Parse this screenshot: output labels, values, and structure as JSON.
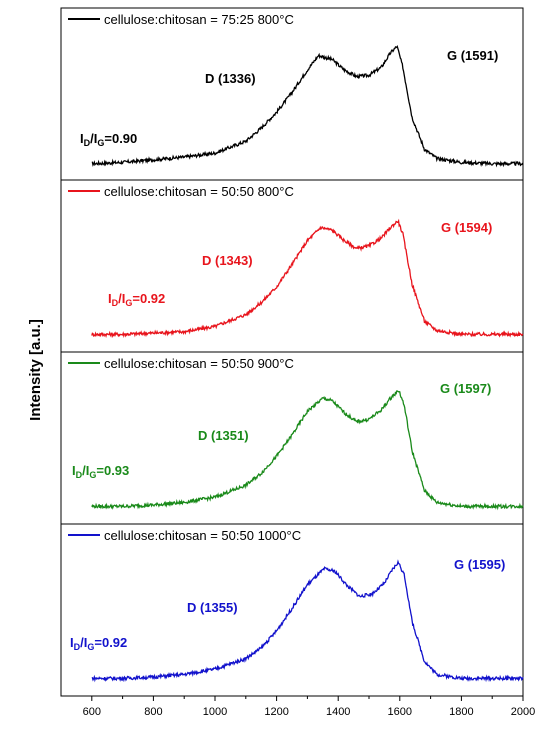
{
  "chart_data": {
    "type": "line",
    "ylabel": "Intensity [a.u.]",
    "xlim": [
      500,
      2000
    ],
    "xticks": [
      "600",
      "800",
      "1000",
      "1200",
      "1400",
      "1600",
      "1800",
      "2000"
    ],
    "panels": [
      {
        "legend": "cellulose:chitosan = 75:25 800°C",
        "color": "#000000",
        "d_label": "D (1336)",
        "g_label": "G (1591)",
        "ratio": {
          "main": "I",
          "d": "D",
          "sep": "/I",
          "g": "G",
          "value": "=0.90"
        },
        "x": [
          600,
          700,
          800,
          900,
          1000,
          1100,
          1150,
          1200,
          1250,
          1300,
          1336,
          1380,
          1420,
          1460,
          1500,
          1540,
          1570,
          1591,
          1610,
          1640,
          1680,
          1720,
          1800,
          1900,
          2000
        ],
        "y": [
          0.01,
          0.02,
          0.04,
          0.06,
          0.09,
          0.18,
          0.28,
          0.4,
          0.55,
          0.72,
          0.83,
          0.8,
          0.72,
          0.67,
          0.68,
          0.74,
          0.85,
          0.9,
          0.74,
          0.36,
          0.12,
          0.05,
          0.02,
          0.01,
          0.01
        ]
      },
      {
        "legend": "cellulose:chitosan = 50:50 800°C",
        "color": "#e8141c",
        "d_label": "D (1343)",
        "g_label": "G (1594)",
        "ratio": {
          "main": "I",
          "d": "D",
          "sep": "/I",
          "g": "G",
          "value": "=0.92"
        },
        "x": [
          600,
          700,
          800,
          900,
          1000,
          1100,
          1150,
          1200,
          1250,
          1300,
          1343,
          1380,
          1420,
          1460,
          1500,
          1540,
          1570,
          1594,
          1610,
          1640,
          1680,
          1720,
          1800,
          1900,
          2000
        ],
        "y": [
          0.02,
          0.02,
          0.03,
          0.04,
          0.08,
          0.17,
          0.26,
          0.38,
          0.55,
          0.73,
          0.83,
          0.81,
          0.73,
          0.67,
          0.69,
          0.75,
          0.83,
          0.88,
          0.78,
          0.4,
          0.12,
          0.05,
          0.02,
          0.02,
          0.02
        ]
      },
      {
        "legend": "cellulose:chitosan = 50:50 900°C",
        "color": "#1a8a1a",
        "d_label": "D (1351)",
        "g_label": "G (1597)",
        "ratio": {
          "main": "I",
          "d": "D",
          "sep": "/I",
          "g": "G",
          "value": "=0.93"
        },
        "x": [
          600,
          700,
          800,
          900,
          1000,
          1100,
          1150,
          1200,
          1250,
          1300,
          1351,
          1380,
          1420,
          1460,
          1500,
          1540,
          1570,
          1597,
          1615,
          1640,
          1680,
          1720,
          1800,
          1900,
          2000
        ],
        "y": [
          0.02,
          0.02,
          0.03,
          0.05,
          0.09,
          0.18,
          0.27,
          0.4,
          0.56,
          0.74,
          0.84,
          0.82,
          0.73,
          0.66,
          0.68,
          0.75,
          0.84,
          0.9,
          0.78,
          0.44,
          0.14,
          0.05,
          0.02,
          0.02,
          0.02
        ]
      },
      {
        "legend": "cellulose:chitosan = 50:50 1000°C",
        "color": "#1212cc",
        "d_label": "D (1355)",
        "g_label": "G (1595)",
        "ratio": {
          "main": "I",
          "d": "D",
          "sep": "/I",
          "g": "G",
          "value": "=0.92"
        },
        "x": [
          600,
          700,
          800,
          900,
          1000,
          1100,
          1150,
          1200,
          1250,
          1300,
          1355,
          1390,
          1430,
          1470,
          1510,
          1550,
          1575,
          1595,
          1615,
          1640,
          1680,
          1720,
          1800,
          1900,
          2000
        ],
        "y": [
          0.02,
          0.02,
          0.03,
          0.05,
          0.09,
          0.17,
          0.25,
          0.38,
          0.55,
          0.73,
          0.85,
          0.83,
          0.72,
          0.64,
          0.66,
          0.74,
          0.84,
          0.9,
          0.8,
          0.45,
          0.15,
          0.05,
          0.02,
          0.02,
          0.02
        ]
      }
    ]
  }
}
